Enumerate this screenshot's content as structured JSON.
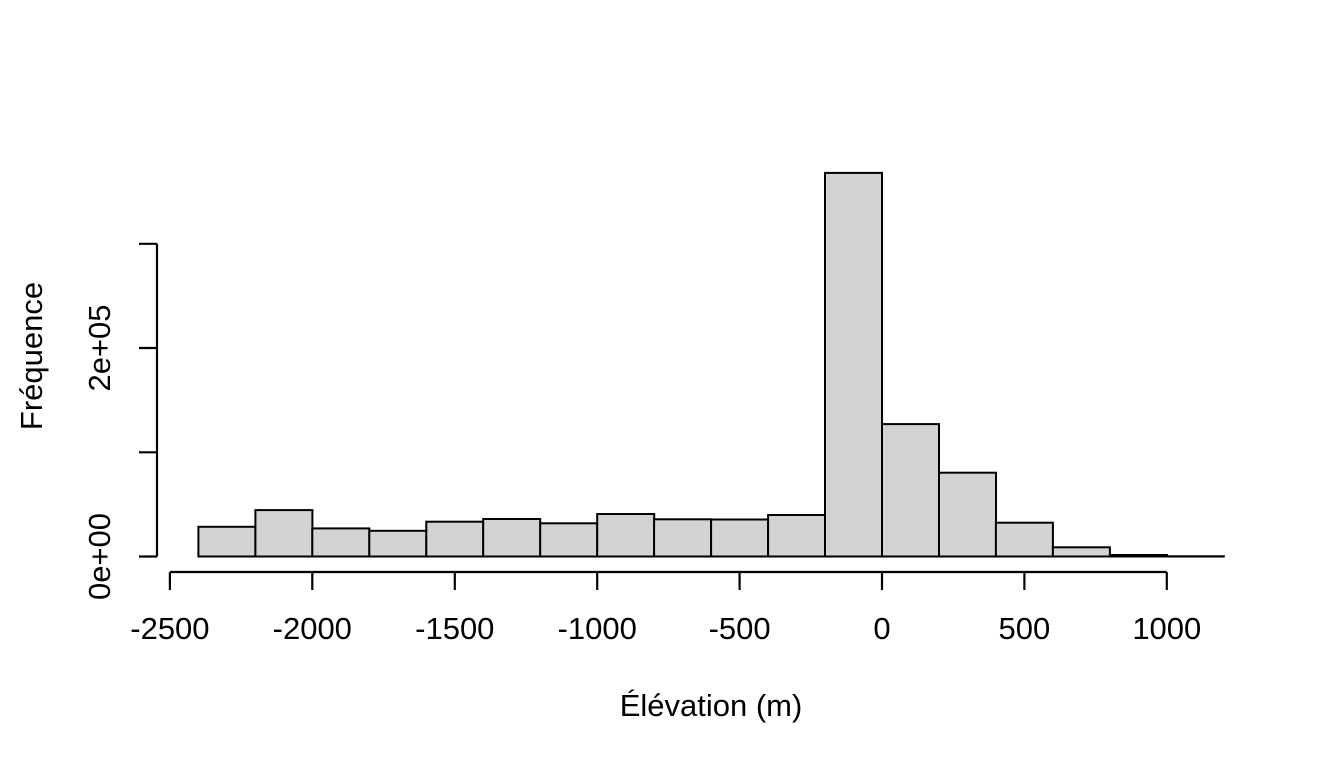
{
  "chart_data": {
    "type": "bar",
    "subtype": "histogram",
    "title": "",
    "xlabel": "Élévation (m)",
    "ylabel": "Fréquence",
    "bin_start": -2400,
    "bin_width": 200,
    "bins": [
      {
        "from": -2400,
        "to": -2200,
        "count": 28500
      },
      {
        "from": -2200,
        "to": -2000,
        "count": 44500
      },
      {
        "from": -2000,
        "to": -1800,
        "count": 27000
      },
      {
        "from": -1800,
        "to": -1600,
        "count": 24700
      },
      {
        "from": -1600,
        "to": -1400,
        "count": 33400
      },
      {
        "from": -1400,
        "to": -1200,
        "count": 36000
      },
      {
        "from": -1200,
        "to": -1000,
        "count": 31800
      },
      {
        "from": -1000,
        "to": -800,
        "count": 40800
      },
      {
        "from": -800,
        "to": -600,
        "count": 35700
      },
      {
        "from": -600,
        "to": -400,
        "count": 35500
      },
      {
        "from": -400,
        "to": -200,
        "count": 39800
      },
      {
        "from": -200,
        "to": 0,
        "count": 368000
      },
      {
        "from": 0,
        "to": 200,
        "count": 127000
      },
      {
        "from": 200,
        "to": 400,
        "count": 80400
      },
      {
        "from": 400,
        "to": 600,
        "count": 32400
      },
      {
        "from": 600,
        "to": 800,
        "count": 8800
      },
      {
        "from": 800,
        "to": 1000,
        "count": 1400
      },
      {
        "from": 1000,
        "to": 1200,
        "count": 200
      }
    ],
    "counts": [
      28500,
      44500,
      27000,
      24700,
      33400,
      36000,
      31800,
      40800,
      35700,
      35500,
      39800,
      368000,
      127000,
      80400,
      32400,
      8800,
      1400,
      200
    ],
    "x_ticks": {
      "values": [
        -2500,
        -2000,
        -1500,
        -1000,
        -500,
        0,
        500,
        1000
      ],
      "labels": [
        "-2500",
        "-2000",
        "-1500",
        "-1000",
        "-500",
        "0",
        "500",
        "1000"
      ]
    },
    "y_ticks": {
      "values": [
        0,
        100000,
        200000,
        300000
      ],
      "labels": [
        "0e+00",
        "",
        "2e+05",
        ""
      ]
    },
    "xlim": [
      -2500,
      1000
    ],
    "ylim": [
      0,
      300000
    ],
    "grid": "off",
    "legend": "none",
    "colors": {
      "bar_fill": "#d3d3d3",
      "bar_stroke": "#000000",
      "axis": "#000000",
      "text": "#000000",
      "background": "#ffffff"
    }
  }
}
